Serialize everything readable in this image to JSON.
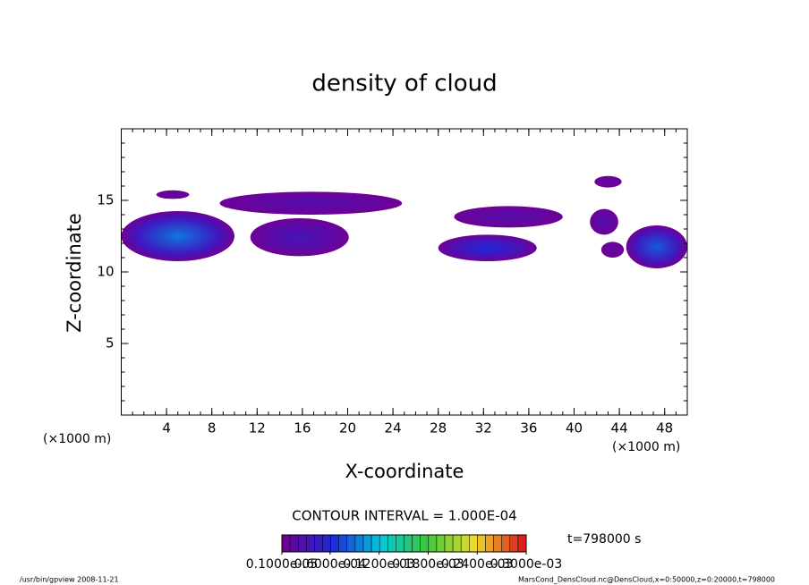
{
  "chart_data": {
    "type": "contour",
    "title": "density of cloud",
    "x_label": "X-coordinate",
    "y_label": "Z-coordinate",
    "x_unit": "(×1000 m)",
    "y_unit": "(×1000 m)",
    "xlim": [
      0,
      50
    ],
    "ylim": [
      0,
      20
    ],
    "xticks": [
      4,
      8,
      12,
      16,
      20,
      24,
      28,
      32,
      36,
      40,
      44,
      48
    ],
    "yticks": [
      5,
      10,
      15
    ],
    "contour_interval": "CONTOUR INTERVAL = 1.000E-04",
    "time_label": "t=798000 s",
    "colorbar_ticks": [
      {
        "value": 1e-06,
        "label": "0.1000e-05"
      },
      {
        "value": 6e-05,
        "label": "0.6000e-04"
      },
      {
        "value": 0.00012,
        "label": "0.1200e-03"
      },
      {
        "value": 0.00018,
        "label": "0.1800e-03"
      },
      {
        "value": 0.00024,
        "label": "0.2400e-03"
      },
      {
        "value": 0.0003,
        "label": "0.3000e-03"
      }
    ],
    "colorbar_lim": [
      1e-06,
      0.0003
    ],
    "clouds": [
      {
        "x": [
          0,
          10
        ],
        "z": [
          10.75,
          14.25
        ],
        "peak": 9e-05
      },
      {
        "x": [
          3.1,
          6.0
        ],
        "z": [
          15.1,
          15.7
        ],
        "peak": 1e-05
      },
      {
        "x": [
          8.7,
          24.8
        ],
        "z": [
          14.0,
          15.6
        ],
        "peak": 2e-05
      },
      {
        "x": [
          11.4,
          20.1
        ],
        "z": [
          11.1,
          13.75
        ],
        "peak": 3e-05
      },
      {
        "x": [
          28.0,
          36.7
        ],
        "z": [
          10.75,
          12.6
        ],
        "peak": 6e-05
      },
      {
        "x": [
          29.4,
          39.0
        ],
        "z": [
          13.1,
          14.6
        ],
        "peak": 2e-05
      },
      {
        "x": [
          41.8,
          44.2
        ],
        "z": [
          15.9,
          16.7
        ],
        "peak": 1e-05
      },
      {
        "x": [
          41.4,
          43.9
        ],
        "z": [
          12.6,
          14.4
        ],
        "peak": 2e-05
      },
      {
        "x": [
          42.4,
          44.4
        ],
        "z": [
          11.0,
          12.1
        ],
        "peak": 1e-05
      },
      {
        "x": [
          44.6,
          50
        ],
        "z": [
          10.25,
          13.25
        ],
        "peak": 8e-05
      }
    ],
    "footer_left": "/usr/bin/gpview   2008-11-21",
    "footer_right": "MarsCond_DensCloud.nc@DensCloud,x=0:50000,z=0:20000,t=798000"
  }
}
